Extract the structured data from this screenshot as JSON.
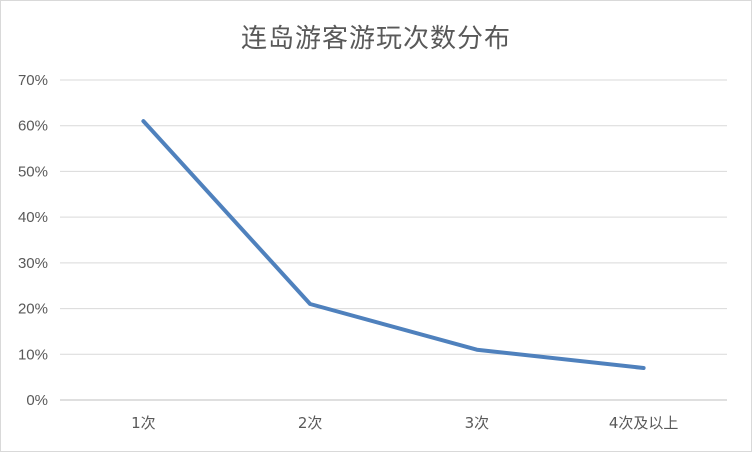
{
  "chart_data": {
    "type": "line",
    "title": "连岛游客游玩次数分布",
    "categories": [
      "1次",
      "2次",
      "3次",
      "4次及以上"
    ],
    "series": [
      {
        "values": [
          0.61,
          0.21,
          0.11,
          0.07
        ],
        "color": "#4f81bd"
      }
    ],
    "y_ticks": [
      "0%",
      "10%",
      "20%",
      "30%",
      "40%",
      "50%",
      "60%",
      "70%"
    ],
    "ylim": [
      0,
      0.7
    ],
    "y_format": "percent",
    "grid": true,
    "legend": "none"
  }
}
